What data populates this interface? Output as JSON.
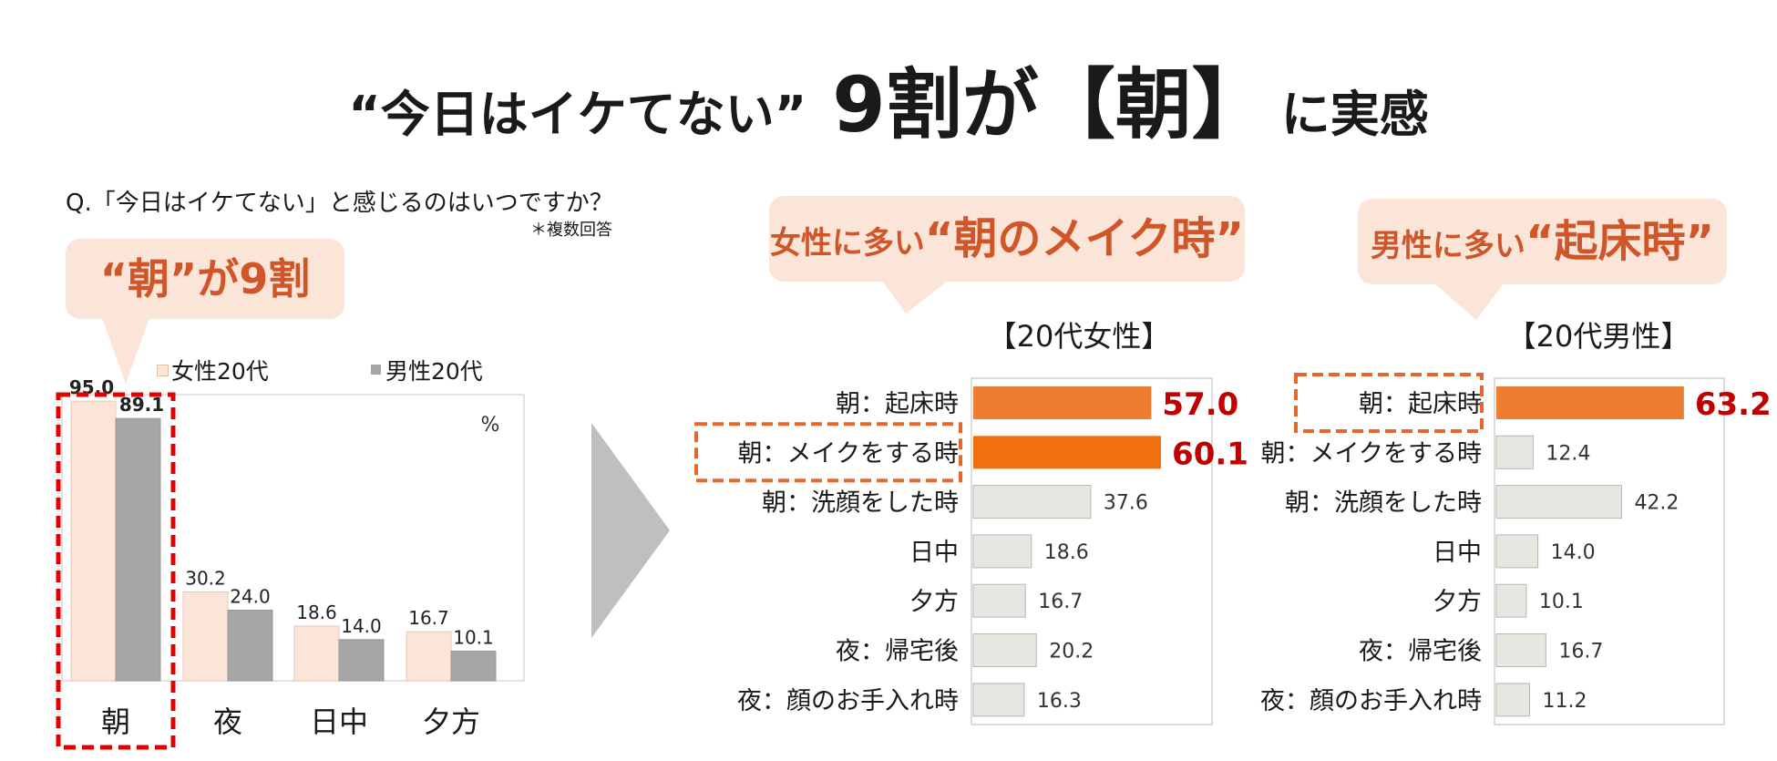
{
  "title": {
    "part1": "“今日はイケてない”",
    "part2": "9割が【朝】",
    "part3": "に実感"
  },
  "question": "Q.「今日はイケてない」と感じるのはいつですか？",
  "note": "＊複数回答",
  "callout_left": "“朝”が9割",
  "callout_women": {
    "prefix": "女性に多い",
    "highlight": "“朝のメイク時”"
  },
  "callout_men": {
    "prefix": "男性に多い",
    "highlight": "“起床時”"
  },
  "colors": {
    "female": "#fbe5d8",
    "male": "#a6a6a6",
    "accent_orange": "#ed7d31",
    "accent_strong": "#f07010",
    "neutral_bar": "#e7e6e0",
    "highlight_red": "#e30000",
    "value_red": "#c00000",
    "dash_orange": "#e8662e"
  },
  "chart_data": [
    {
      "type": "bar",
      "title": "",
      "unit": "%",
      "categories": [
        "朝",
        "夜",
        "日中",
        "夕方"
      ],
      "series": [
        {
          "name": "女性20代",
          "values": [
            95.0,
            30.2,
            18.6,
            16.7
          ]
        },
        {
          "name": "男性20代",
          "values": [
            89.1,
            24.0,
            14.0,
            10.1
          ]
        }
      ],
      "value_labels": [
        [
          "95.0",
          "30.2",
          "18.6",
          "16.7"
        ],
        [
          "89.1",
          "24.0",
          "14.0",
          "10.1"
        ]
      ],
      "ylim": [
        0,
        100
      ],
      "legend_position": "top",
      "highlighted_category": "朝"
    },
    {
      "type": "bar",
      "orientation": "horizontal",
      "title": "【20代女性】",
      "categories": [
        "朝：起床時",
        "朝：メイクをする時",
        "朝：洗顔をした時",
        "日中",
        "夕方",
        "夜：帰宅後",
        "夜：顔のお手入れ時"
      ],
      "values": [
        57.0,
        60.1,
        37.6,
        18.6,
        16.7,
        20.2,
        16.3
      ],
      "value_labels": [
        "57.0",
        "60.1",
        "37.6",
        "18.6",
        "16.7",
        "20.2",
        "16.3"
      ],
      "highlight": [
        0,
        1
      ],
      "highlighted_category": "朝：メイクをする時",
      "xlim": [
        0,
        100
      ]
    },
    {
      "type": "bar",
      "orientation": "horizontal",
      "title": "【20代男性】",
      "categories": [
        "朝：起床時",
        "朝：メイクをする時",
        "朝：洗顔をした時",
        "日中",
        "夕方",
        "夜：帰宅後",
        "夜：顔のお手入れ時"
      ],
      "values": [
        63.2,
        12.4,
        42.2,
        14.0,
        10.1,
        16.7,
        11.2
      ],
      "value_labels": [
        "63.2",
        "12.4",
        "42.2",
        "14.0",
        "10.1",
        "16.7",
        "11.2"
      ],
      "highlight": [
        0
      ],
      "highlighted_category": "朝：起床時",
      "xlim": [
        0,
        100
      ]
    }
  ]
}
